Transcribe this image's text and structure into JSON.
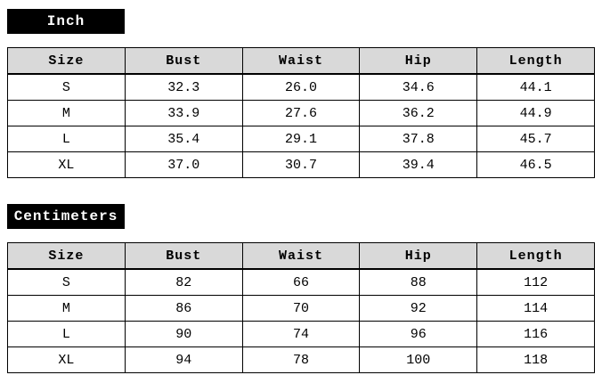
{
  "colors": {
    "label_bg": "#000000",
    "label_text": "#ffffff",
    "header_bg": "#d9d9d9",
    "border": "#000000",
    "body_bg": "#ffffff"
  },
  "tables": [
    {
      "label": "Inch",
      "columns": [
        "Size",
        "Bust",
        "Waist",
        "Hip",
        "Length"
      ],
      "rows": [
        [
          "S",
          "32.3",
          "26.0",
          "34.6",
          "44.1"
        ],
        [
          "M",
          "33.9",
          "27.6",
          "36.2",
          "44.9"
        ],
        [
          "L",
          "35.4",
          "29.1",
          "37.8",
          "45.7"
        ],
        [
          "XL",
          "37.0",
          "30.7",
          "39.4",
          "46.5"
        ]
      ]
    },
    {
      "label": "Centimeters",
      "columns": [
        "Size",
        "Bust",
        "Waist",
        "Hip",
        "Length"
      ],
      "rows": [
        [
          "S",
          "82",
          "66",
          "88",
          "112"
        ],
        [
          "M",
          "86",
          "70",
          "92",
          "114"
        ],
        [
          "L",
          "90",
          "74",
          "96",
          "116"
        ],
        [
          "XL",
          "94",
          "78",
          "100",
          "118"
        ]
      ]
    }
  ]
}
